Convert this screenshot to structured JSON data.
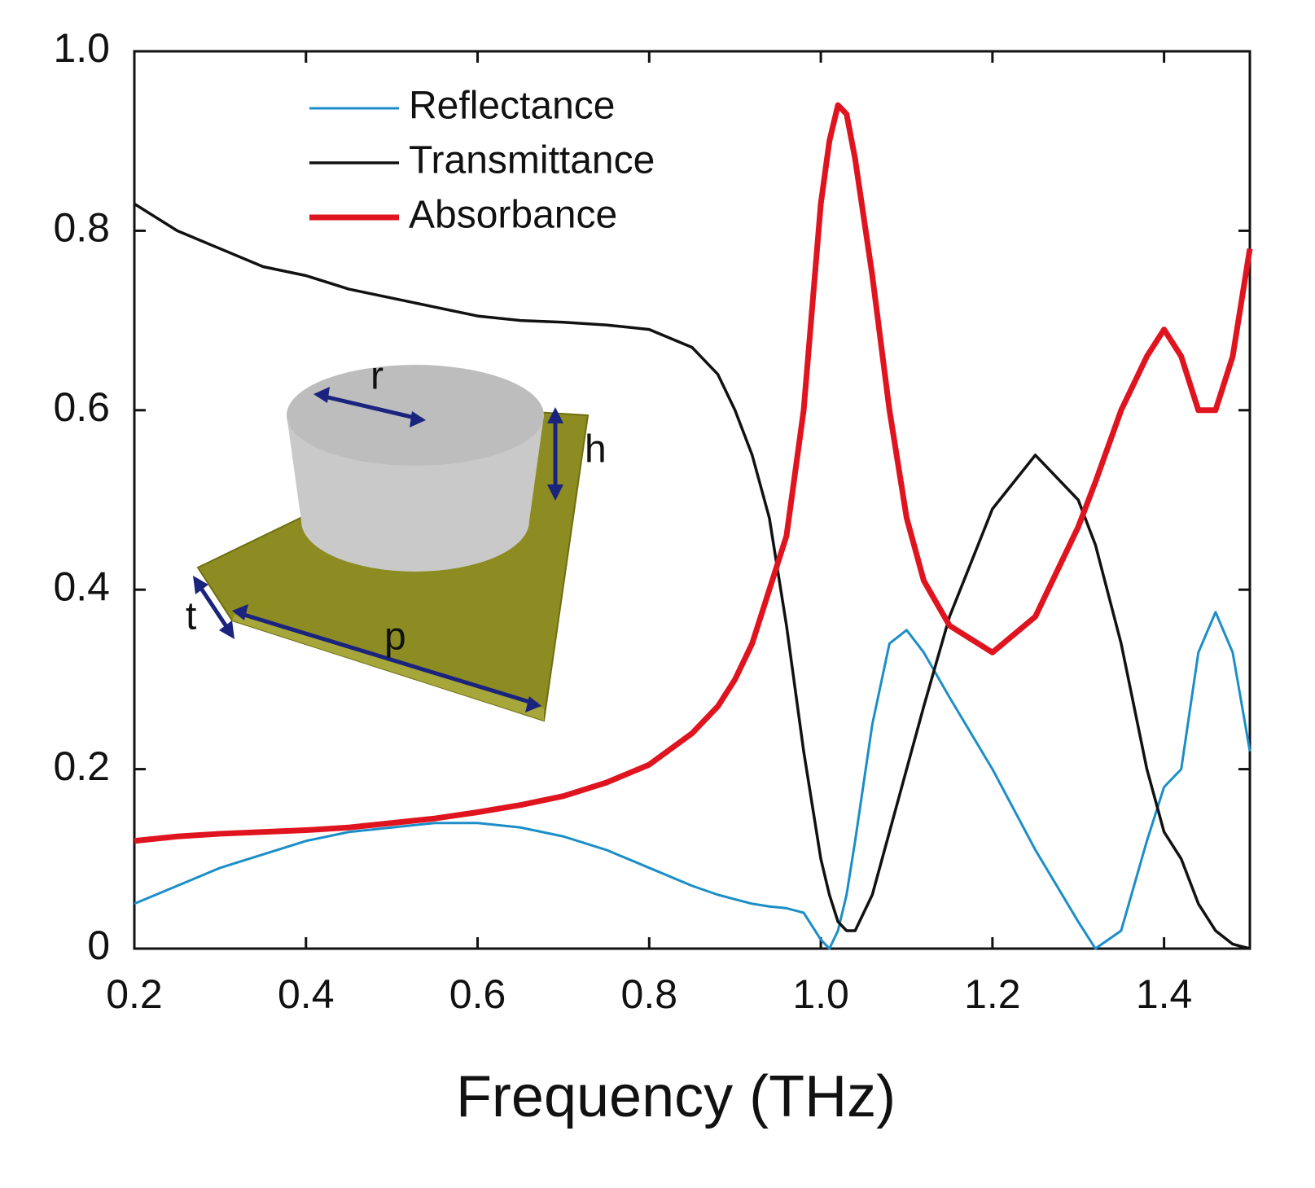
{
  "chart_data": {
    "type": "line",
    "x_label": "Frequency (THz)",
    "x": [
      0.2,
      0.25,
      0.3,
      0.35,
      0.4,
      0.45,
      0.5,
      0.55,
      0.6,
      0.65,
      0.7,
      0.75,
      0.8,
      0.85,
      0.88,
      0.9,
      0.92,
      0.94,
      0.96,
      0.98,
      1.0,
      1.01,
      1.02,
      1.03,
      1.04,
      1.06,
      1.08,
      1.1,
      1.12,
      1.15,
      1.2,
      1.25,
      1.3,
      1.32,
      1.35,
      1.38,
      1.4,
      1.42,
      1.44,
      1.46,
      1.48,
      1.5
    ],
    "series": [
      {
        "name": "Reflectance",
        "color": "#1b8ec8",
        "width": 3,
        "values": [
          0.05,
          0.07,
          0.09,
          0.105,
          0.12,
          0.13,
          0.135,
          0.14,
          0.14,
          0.135,
          0.125,
          0.11,
          0.09,
          0.07,
          0.06,
          0.055,
          0.05,
          0.047,
          0.045,
          0.04,
          0.01,
          0,
          0.02,
          0.06,
          0.12,
          0.25,
          0.34,
          0.355,
          0.33,
          0.28,
          0.2,
          0.11,
          0.03,
          0,
          0.02,
          0.12,
          0.18,
          0.2,
          0.33,
          0.375,
          0.33,
          0.22
        ]
      },
      {
        "name": "Transmittance",
        "color": "#111111",
        "width": 3.5,
        "values": [
          0.83,
          0.8,
          0.78,
          0.76,
          0.75,
          0.735,
          0.725,
          0.715,
          0.705,
          0.7,
          0.698,
          0.695,
          0.69,
          0.67,
          0.64,
          0.6,
          0.55,
          0.48,
          0.36,
          0.22,
          0.1,
          0.06,
          0.03,
          0.02,
          0.02,
          0.06,
          0.13,
          0.2,
          0.27,
          0.37,
          0.49,
          0.55,
          0.5,
          0.45,
          0.34,
          0.2,
          0.13,
          0.1,
          0.05,
          0.02,
          0.005,
          0
        ]
      },
      {
        "name": "Absorbance",
        "color": "#e0141e",
        "width": 7,
        "values": [
          0.12,
          0.125,
          0.128,
          0.13,
          0.132,
          0.135,
          0.14,
          0.145,
          0.152,
          0.16,
          0.17,
          0.185,
          0.205,
          0.24,
          0.27,
          0.3,
          0.34,
          0.4,
          0.46,
          0.6,
          0.83,
          0.9,
          0.94,
          0.93,
          0.88,
          0.75,
          0.6,
          0.48,
          0.41,
          0.36,
          0.33,
          0.37,
          0.47,
          0.52,
          0.6,
          0.66,
          0.69,
          0.66,
          0.6,
          0.6,
          0.66,
          0.78
        ]
      }
    ],
    "xlim": [
      0.2,
      1.5
    ],
    "ylim": [
      0,
      1
    ],
    "xticks": [
      0.2,
      0.4,
      0.6,
      0.8,
      {
        "value": 1,
        "label": "1.0"
      },
      1.2,
      1.4
    ],
    "yticks": [
      0,
      0.2,
      0.4,
      0.6,
      0.8,
      {
        "value": 1,
        "label": "1.0"
      }
    ],
    "legend": "upper-left",
    "inset_labels": [
      "r",
      "h",
      "t",
      "p"
    ]
  }
}
